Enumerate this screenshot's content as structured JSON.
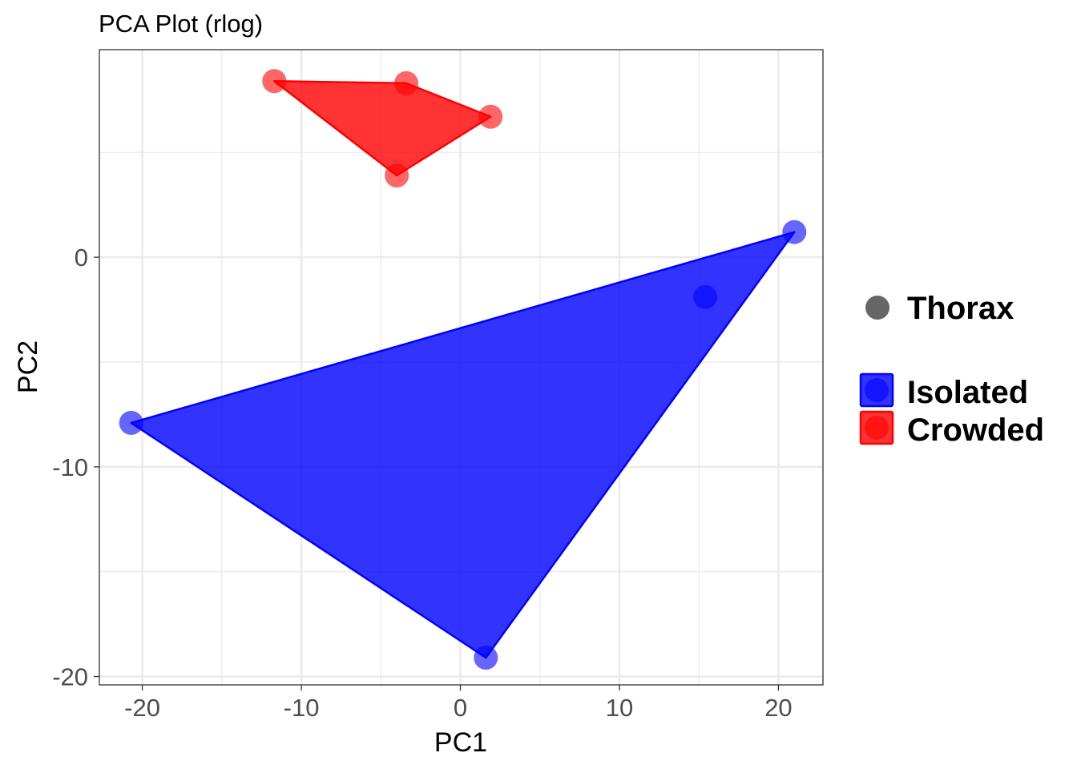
{
  "chart_data": {
    "type": "scatter",
    "title": "PCA Plot (rlog)",
    "xlabel": "PC1",
    "ylabel": "PC2",
    "xlim": [
      -22.7,
      22.8
    ],
    "ylim": [
      -20.4,
      9.9
    ],
    "x_ticks": [
      -20,
      -10,
      0,
      10,
      20
    ],
    "y_ticks": [
      -20,
      -10,
      0
    ],
    "x_tick_labels": [
      "-20",
      "-10",
      "0",
      "10",
      "20"
    ],
    "y_tick_labels": [
      "-20",
      "-10",
      "0"
    ],
    "grid": true,
    "legend_position": "right",
    "shape_legend": {
      "label": "Thorax",
      "color": "#666666"
    },
    "series": [
      {
        "name": "Isolated",
        "color": "#0000ff",
        "points": [
          {
            "x": -20.7,
            "y": -7.9
          },
          {
            "x": 1.6,
            "y": -19.1
          },
          {
            "x": 15.4,
            "y": -1.9
          },
          {
            "x": 21.0,
            "y": 1.2
          }
        ],
        "hull": [
          {
            "x": -20.7,
            "y": -7.9
          },
          {
            "x": 1.6,
            "y": -19.1
          },
          {
            "x": 21.0,
            "y": 1.2
          }
        ]
      },
      {
        "name": "Crowded",
        "color": "#ff0000",
        "points": [
          {
            "x": -11.7,
            "y": 8.4
          },
          {
            "x": -3.4,
            "y": 8.3
          },
          {
            "x": 1.9,
            "y": 6.7
          },
          {
            "x": -4.0,
            "y": 3.9
          }
        ],
        "hull": [
          {
            "x": -11.7,
            "y": 8.4
          },
          {
            "x": -3.4,
            "y": 8.3
          },
          {
            "x": 1.9,
            "y": 6.7
          },
          {
            "x": -4.0,
            "y": 3.9
          }
        ]
      }
    ]
  }
}
